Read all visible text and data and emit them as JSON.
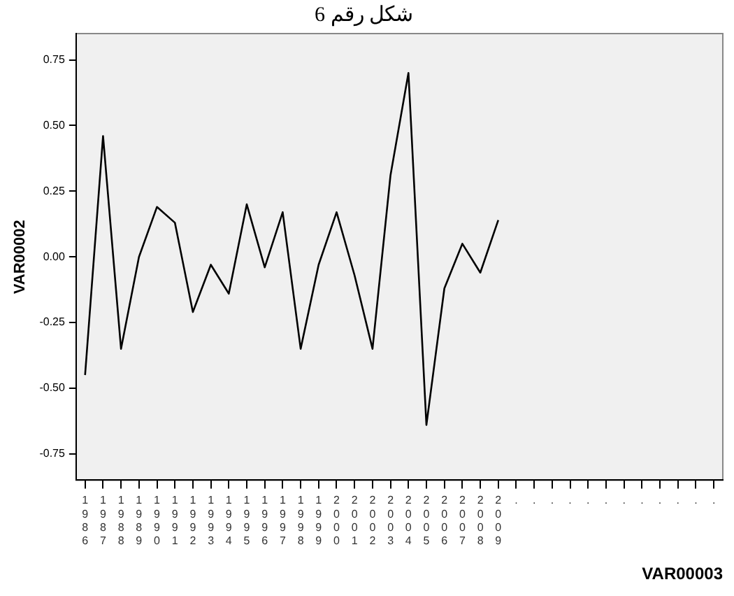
{
  "chart_data": {
    "type": "line",
    "title": "شكل رقم 6",
    "xlabel": "VAR00003",
    "ylabel": "VAR00002",
    "categories": [
      "1986",
      "1987",
      "1988",
      "1989",
      "1990",
      "1991",
      "1992",
      "1993",
      "1994",
      "1995",
      "1996",
      "1997",
      "1998",
      "1999",
      "2000",
      "2001",
      "2002",
      "2003",
      "2004",
      "2005",
      "2006",
      "2007",
      "2008",
      "2009",
      ".",
      ".",
      ".",
      ".",
      ".",
      ".",
      ".",
      ".",
      ".",
      ".",
      ".",
      "."
    ],
    "series": [
      {
        "color": "#000000",
        "values": [
          -0.45,
          0.46,
          -0.35,
          0.0,
          0.19,
          0.13,
          -0.21,
          -0.03,
          -0.14,
          0.2,
          -0.04,
          0.17,
          -0.35,
          -0.03,
          0.17,
          -0.07,
          -0.35,
          0.31,
          0.7,
          -0.64,
          -0.12,
          0.05,
          -0.06,
          0.14,
          null,
          null,
          null,
          null,
          null,
          null,
          null,
          null,
          null,
          null,
          null,
          null
        ]
      }
    ],
    "ylim": [
      -0.85,
      0.85
    ],
    "yticks": [
      {
        "value": 0.75,
        "label": "0.75"
      },
      {
        "value": 0.5,
        "label": "0.50"
      },
      {
        "value": 0.25,
        "label": "0.25"
      },
      {
        "value": 0,
        "label": "0.00"
      },
      {
        "value": -0.25,
        "label": "-0.25"
      },
      {
        "value": -0.5,
        "label": "-0.50"
      },
      {
        "value": -0.75,
        "label": "-0.75"
      }
    ],
    "grid": false,
    "legend": false,
    "marker": "none",
    "line_style": "solid"
  }
}
